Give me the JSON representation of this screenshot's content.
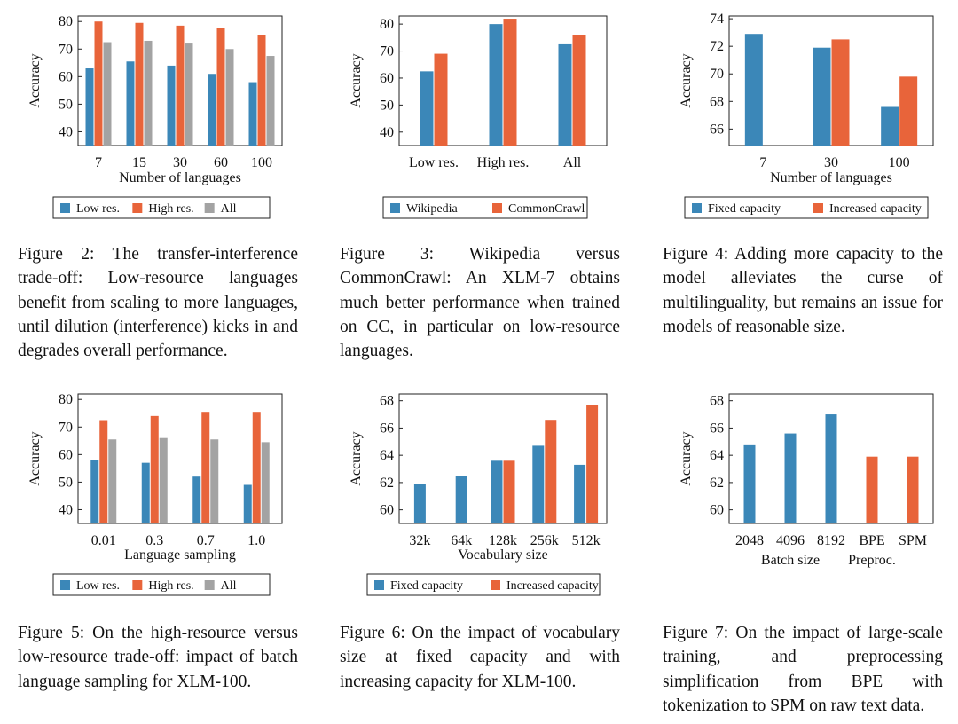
{
  "colors": {
    "blue": "#3b87b8",
    "orange": "#e8643a",
    "gray": "#a3a3a3"
  },
  "captions": {
    "fig2": "Figure 2: The transfer-interference trade-off: Low-resource languages benefit from scaling to more languages, until dilution (interference) kicks in and degrades overall performance.",
    "fig3": "Figure 3: Wikipedia versus CommonCrawl: An XLM-7 obtains much better performance when trained on CC, in particular on low-resource languages.",
    "fig4": "Figure 4: Adding more capacity to the model alleviates the curse of multilinguality, but remains an issue for models of reasonable size.",
    "fig5": "Figure 5: On the high-resource versus low-resource trade-off: impact of batch language sampling for XLM-100.",
    "fig6": "Figure 6: On the impact of vocabulary size at fixed capacity and with increasing capacity for XLM-100.",
    "fig7": "Figure 7: On the impact of large-scale training, and preprocessing simplification from BPE with tokenization to SPM on raw text data."
  },
  "chart_data": [
    {
      "id": "fig2",
      "type": "bar",
      "ylabel": "Accuracy",
      "xlabel": "Number of languages",
      "ylim": [
        35,
        82
      ],
      "yticks": [
        40,
        50,
        60,
        70,
        80
      ],
      "categories": [
        "7",
        "15",
        "30",
        "60",
        "100"
      ],
      "series": [
        {
          "name": "Low res.",
          "color": "blue",
          "values": [
            63,
            65.5,
            64,
            61,
            58
          ]
        },
        {
          "name": "High res.",
          "color": "orange",
          "values": [
            80,
            79.5,
            78.5,
            77.5,
            75
          ]
        },
        {
          "name": "All",
          "color": "gray",
          "values": [
            72.5,
            73,
            72,
            70,
            67.5
          ]
        }
      ]
    },
    {
      "id": "fig3",
      "type": "bar",
      "ylabel": "Accuracy",
      "xlabel": "",
      "ylim": [
        35,
        83
      ],
      "yticks": [
        40,
        50,
        60,
        70,
        80
      ],
      "categories": [
        "Low res.",
        "High res.",
        "All"
      ],
      "series": [
        {
          "name": "Wikipedia",
          "color": "blue",
          "values": [
            62.5,
            80,
            72.5
          ]
        },
        {
          "name": "CommonCrawl",
          "color": "orange",
          "values": [
            69,
            82,
            76
          ]
        }
      ]
    },
    {
      "id": "fig4",
      "type": "bar",
      "ylabel": "Accuracy",
      "xlabel": "Number of languages",
      "ylim": [
        64.8,
        74.2
      ],
      "yticks": [
        66,
        68,
        70,
        72,
        74
      ],
      "categories": [
        "7",
        "30",
        "100"
      ],
      "series": [
        {
          "name": "Fixed capacity",
          "color": "blue",
          "values": [
            72.9,
            71.9,
            67.6
          ]
        },
        {
          "name": "Increased capacity",
          "color": "orange",
          "values": [
            null,
            72.5,
            69.8
          ]
        }
      ]
    },
    {
      "id": "fig5",
      "type": "bar",
      "ylabel": "Accuracy",
      "xlabel": "Language sampling",
      "ylim": [
        35,
        82
      ],
      "yticks": [
        40,
        50,
        60,
        70,
        80
      ],
      "categories": [
        "0.01",
        "0.3",
        "0.7",
        "1.0"
      ],
      "series": [
        {
          "name": "Low res.",
          "color": "blue",
          "values": [
            58,
            57,
            52,
            49
          ]
        },
        {
          "name": "High res.",
          "color": "orange",
          "values": [
            72.5,
            74,
            75.5,
            75.5
          ]
        },
        {
          "name": "All",
          "color": "gray",
          "values": [
            65.5,
            66,
            65.5,
            64.5
          ]
        }
      ]
    },
    {
      "id": "fig6",
      "type": "bar",
      "ylabel": "Accuracy",
      "xlabel": "Vocabulary size",
      "ylim": [
        59,
        68.5
      ],
      "yticks": [
        60,
        62,
        64,
        66,
        68
      ],
      "categories": [
        "32k",
        "64k",
        "128k",
        "256k",
        "512k"
      ],
      "series": [
        {
          "name": "Fixed capacity",
          "color": "blue",
          "values": [
            61.9,
            62.5,
            63.6,
            64.7,
            63.3
          ]
        },
        {
          "name": "Increased capacity",
          "color": "orange",
          "values": [
            null,
            null,
            63.6,
            66.6,
            67.7
          ]
        }
      ]
    },
    {
      "id": "fig7",
      "type": "bar",
      "ylabel": "Accuracy",
      "xlabel": "",
      "ylim": [
        59,
        68.5
      ],
      "yticks": [
        60,
        62,
        64,
        66,
        68
      ],
      "categories": [
        "2048",
        "4096",
        "8192",
        "BPE",
        "SPM"
      ],
      "group_labels": [
        "Batch size",
        "Preproc."
      ],
      "series": [
        {
          "name": "",
          "color": "blue",
          "values": [
            64.8,
            65.6,
            67.0,
            null,
            null
          ]
        },
        {
          "name": "",
          "color": "orange",
          "values": [
            null,
            null,
            null,
            63.9,
            63.9
          ]
        }
      ]
    }
  ]
}
